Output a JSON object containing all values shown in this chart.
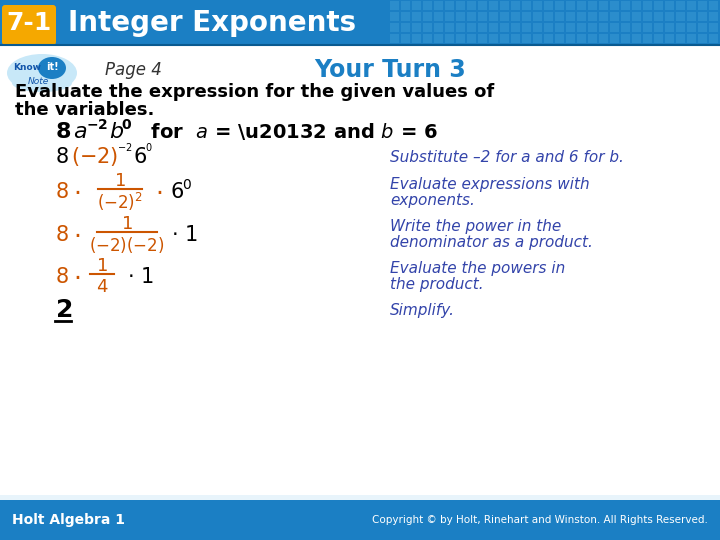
{
  "header_bg": "#1b7fc4",
  "header_text": "Integer Exponents",
  "header_label": "7-1",
  "header_label_bg": "#f5a800",
  "body_bg": "#e8f4fb",
  "footer_bg": "#1b7fc4",
  "footer_text": "Holt Algebra 1",
  "footer_right": "Copyright © by Holt, Rinehart and Winston. All Rights Reserved.",
  "page_label": "Page 4",
  "your_turn": "Your Turn 3",
  "your_turn_color": "#1b7fc4",
  "orange_color": "#cc5500",
  "blue_color": "#3344aa",
  "note1": "Substitute –2 for a and 6 for b.",
  "note2a": "Evaluate expressions with",
  "note2b": "exponents.",
  "note3a": "Write the power in the",
  "note3b": "denominator as a product.",
  "note4a": "Evaluate the powers in",
  "note4b": "the product.",
  "note5": "Simplify."
}
